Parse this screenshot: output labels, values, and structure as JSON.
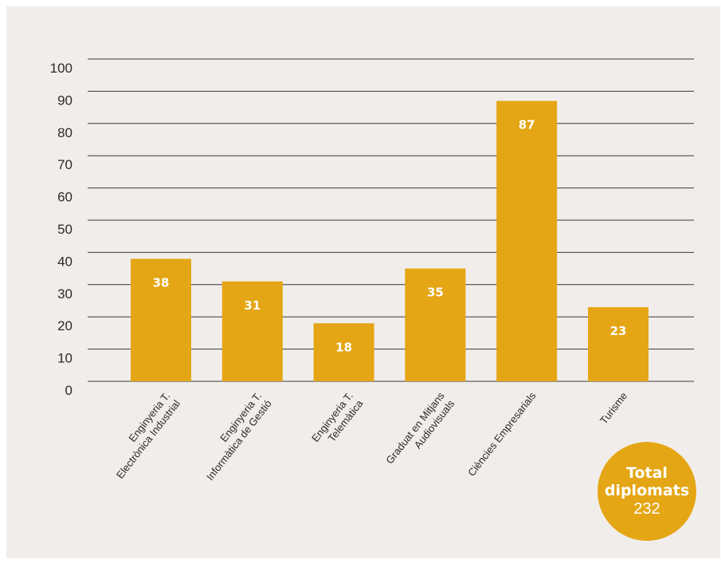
{
  "colors": {
    "background": "#f1edea",
    "bar": "#e4a614",
    "grid": "#3a3a3a",
    "text": "#2b2b2b",
    "label": "#ffffff"
  },
  "chart_data": {
    "type": "bar",
    "categories": [
      [
        "Enginyeria T.",
        "Electrònica Industrial"
      ],
      [
        "Enginyeria T.",
        "Informàtica de Gestió"
      ],
      [
        "Enginyeria T.",
        "Telemàtica"
      ],
      [
        "Graduat en Mitjans",
        "Audiovisuals"
      ],
      [
        "Ciències Empresarials"
      ],
      [
        "Turisme"
      ]
    ],
    "values": [
      38,
      31,
      18,
      35,
      87,
      23
    ],
    "ylim": [
      0,
      100
    ],
    "yticks": [
      0,
      10,
      20,
      30,
      40,
      50,
      60,
      70,
      80,
      90,
      100
    ],
    "data_labels": true,
    "grid": true
  },
  "total": {
    "line1": "Total",
    "line2": "diplomats",
    "value": "232"
  }
}
